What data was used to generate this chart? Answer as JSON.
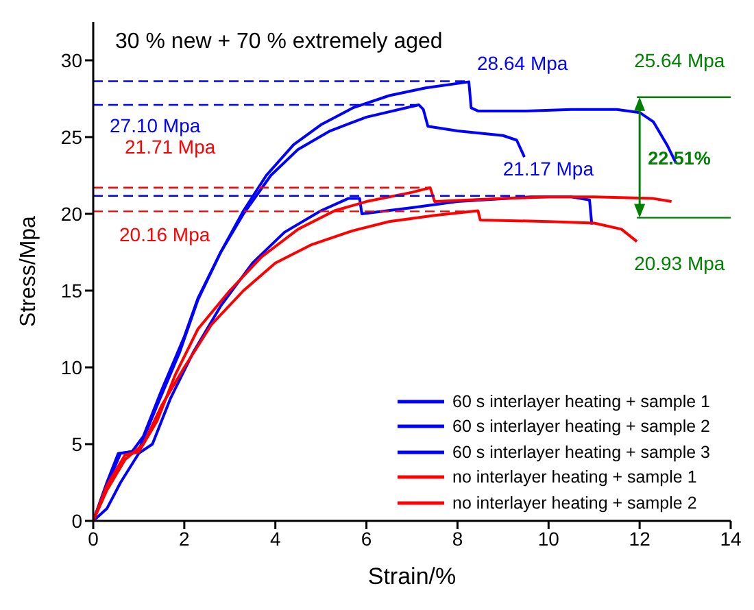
{
  "chart_data": {
    "type": "line",
    "title": "30 % new + 70 % extremely aged",
    "xlabel": "Strain/%",
    "ylabel": "Stress/Mpa",
    "xlim": [
      0,
      14
    ],
    "xticks": [
      0,
      2,
      4,
      6,
      8,
      10,
      12,
      14
    ],
    "ylim": [
      0,
      32.5
    ],
    "yticks": [
      0,
      5,
      10,
      15,
      20,
      25,
      30
    ],
    "grid": false,
    "legend": "bottom right",
    "marker": "none",
    "line_style": "solid",
    "series": [
      {
        "name": "60 s interlayer heating + sample 1",
        "color": "#0000ff",
        "x": [
          0,
          0.3,
          0.55,
          0.85,
          1.1,
          1.5,
          2.0,
          2.3,
          2.8,
          3.3,
          3.8,
          4.4,
          5.0,
          5.7,
          6.5,
          7.3,
          8.25,
          8.3,
          8.45,
          9.5,
          10.5,
          11.5,
          12.0,
          12.3,
          12.6,
          12.8
        ],
        "values": [
          0,
          2.5,
          4.4,
          4.5,
          5.5,
          8.5,
          12,
          14.5,
          17.5,
          20.2,
          22.5,
          24.5,
          25.8,
          26.9,
          27.7,
          28.2,
          28.6,
          26.9,
          26.7,
          26.7,
          26.8,
          26.8,
          26.6,
          26.0,
          24.5,
          23.3
        ]
      },
      {
        "name": "60 s interlayer heating + sample 2",
        "color": "#0000ff",
        "x": [
          0,
          0.3,
          0.6,
          1.0,
          1.4,
          1.9,
          2.3,
          2.8,
          3.3,
          3.9,
          4.5,
          5.2,
          6.0,
          7.15,
          7.25,
          7.35,
          8.0,
          9.0,
          9.3,
          9.47
        ],
        "values": [
          0,
          2.3,
          4.4,
          4.6,
          7.5,
          11,
          14.4,
          17.5,
          20,
          22.5,
          24.2,
          25.4,
          26.3,
          27.1,
          26.8,
          25.7,
          25.4,
          25.1,
          24.8,
          23.7
        ]
      },
      {
        "name": "60 s interlayer heating + sample 3",
        "color": "#0000ff",
        "x": [
          0,
          0.3,
          0.6,
          1.0,
          1.3,
          1.7,
          2.2,
          2.8,
          3.5,
          4.2,
          5.0,
          5.6,
          5.85,
          5.9,
          7.0,
          8.0,
          9.6,
          10.5,
          10.9,
          10.95
        ],
        "values": [
          0,
          0.8,
          2.5,
          4.4,
          5,
          8,
          11,
          14,
          16.8,
          18.8,
          20.2,
          21.0,
          21.0,
          20.0,
          20.4,
          20.8,
          21.1,
          21.1,
          20.9,
          19.3
        ]
      },
      {
        "name": "no interlayer heating + sample 1",
        "color": "#ff0000",
        "x": [
          0,
          0.3,
          0.7,
          1.0,
          1.4,
          1.8,
          2.3,
          3.0,
          3.7,
          4.5,
          5.3,
          6.0,
          7.0,
          7.4,
          7.5,
          9.0,
          10.0,
          11.0,
          12.3,
          12.7
        ],
        "values": [
          0,
          2.3,
          4.3,
          4.5,
          6.5,
          9.5,
          12.5,
          15,
          17.2,
          19,
          20.2,
          20.8,
          21.4,
          21.7,
          20.8,
          21.0,
          21.1,
          21.1,
          21.0,
          20.8
        ]
      },
      {
        "name": "no interlayer heating + sample 2",
        "color": "#ff0000",
        "x": [
          0,
          0.3,
          0.7,
          1.1,
          1.5,
          2.0,
          2.6,
          3.3,
          4.0,
          4.8,
          5.7,
          6.5,
          7.5,
          8.45,
          8.5,
          10.0,
          11.0,
          11.6,
          11.94
        ],
        "values": [
          0,
          2,
          4,
          5,
          7.5,
          10,
          12.8,
          15,
          16.8,
          18,
          18.9,
          19.5,
          19.9,
          20.2,
          19.6,
          19.5,
          19.4,
          19.0,
          18.2
        ]
      },
      {
        "color": "#0000ff",
        "line_style": "dashed",
        "x": [
          0,
          8.25
        ],
        "values": [
          28.64,
          28.64
        ],
        "value_labels": [
          null,
          "28.64 Mpa"
        ]
      },
      {
        "color": "#0000ff",
        "line_style": "dashed",
        "x": [
          0,
          7.15
        ],
        "values": [
          27.1,
          27.1
        ],
        "value_labels": [
          "27.10 Mpa",
          null
        ]
      },
      {
        "color": "#0000ff",
        "line_style": "dashed",
        "x": [
          0,
          9.6
        ],
        "values": [
          21.17,
          21.17
        ],
        "value_labels": [
          null,
          "21.17 Mpa"
        ]
      },
      {
        "color": "#ff0000",
        "line_style": "dashed",
        "x": [
          0,
          7.4
        ],
        "values": [
          21.71,
          21.71
        ],
        "value_labels": [
          "21.71 Mpa",
          null
        ]
      },
      {
        "color": "#ff0000",
        "line_style": "dashed",
        "x": [
          0,
          8.45
        ],
        "values": [
          20.16,
          20.16
        ],
        "value_labels": [
          "20.16 Mpa",
          null
        ]
      },
      {
        "color": "#008000",
        "x": [
          11.94,
          14
        ],
        "values": [
          27.6,
          27.6
        ]
      },
      {
        "color": "#008000",
        "x": [
          11.94,
          14
        ],
        "values": [
          19.75,
          19.75
        ]
      }
    ],
    "annotations": [
      "25.64 Mpa",
      "20.93 Mpa",
      "22.51%"
    ]
  }
}
